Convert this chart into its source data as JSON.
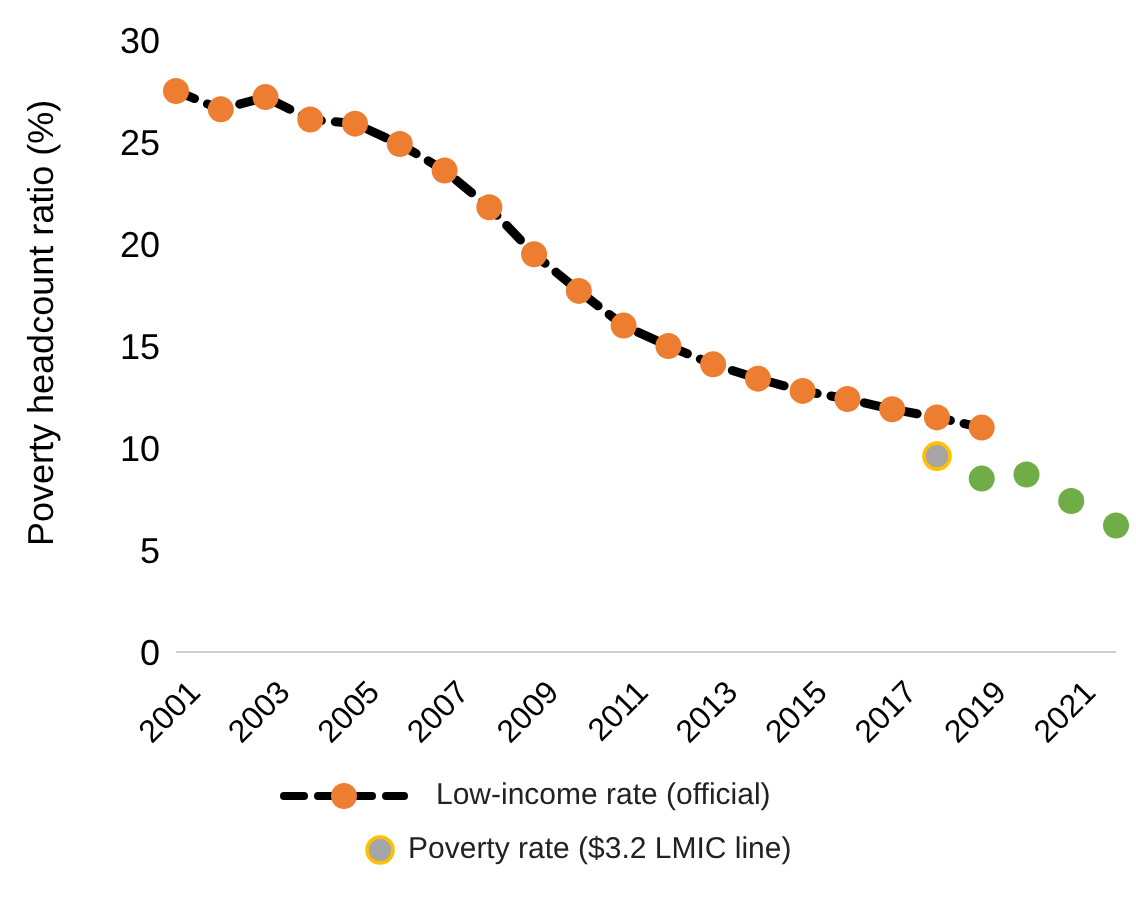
{
  "chart_data": {
    "type": "line",
    "ylabel": "Poverty headcount ratio (%)",
    "categories": [
      "2001",
      null,
      "2003",
      null,
      "2005",
      null,
      "2007",
      null,
      "2009",
      null,
      "2011",
      null,
      "2013",
      null,
      "2015",
      null,
      "2017",
      null,
      "2019",
      null,
      "2021",
      null
    ],
    "series": [
      {
        "name": "Low-income rate (official)",
        "color": "#ed7d31",
        "line_style": "dashed",
        "marker": "circle",
        "values": [
          27.5,
          26.6,
          27.2,
          26.1,
          25.9,
          24.9,
          23.6,
          21.8,
          19.5,
          17.7,
          16.0,
          15.0,
          14.1,
          13.4,
          12.8,
          12.4,
          11.9,
          11.5,
          11.0,
          null,
          null,
          null
        ]
      },
      {
        "name": "Poverty rate ($3.2 LMIC line)",
        "type": "scatter",
        "color": "#a5a5a5",
        "marker": "circle",
        "values": [
          null,
          null,
          null,
          null,
          null,
          null,
          null,
          null,
          null,
          null,
          null,
          null,
          null,
          null,
          null,
          null,
          null,
          9.6,
          null,
          null,
          null,
          null
        ]
      },
      {
        "type": "scatter",
        "color": "#70ad47",
        "marker": "circle",
        "values": [
          null,
          null,
          null,
          null,
          null,
          null,
          null,
          null,
          null,
          null,
          null,
          null,
          null,
          null,
          null,
          null,
          null,
          null,
          8.5,
          8.7,
          7.4,
          6.2
        ]
      }
    ],
    "ylim": [
      0,
      30
    ],
    "yticks": [
      0,
      5,
      10,
      15,
      20,
      25,
      30
    ],
    "grid": false,
    "legend": "bottom"
  }
}
